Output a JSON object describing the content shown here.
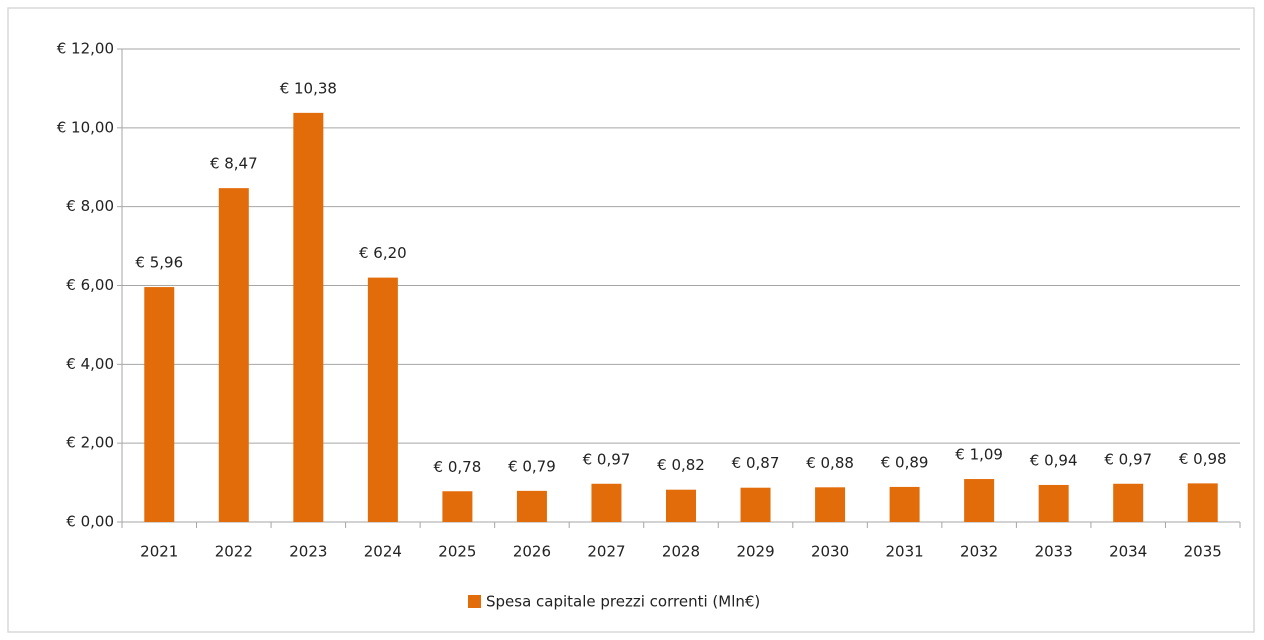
{
  "chart_data": {
    "type": "bar",
    "categories": [
      "2021",
      "2022",
      "2023",
      "2024",
      "2025",
      "2026",
      "2027",
      "2028",
      "2029",
      "2030",
      "2031",
      "2032",
      "2033",
      "2034",
      "2035"
    ],
    "values": [
      5.96,
      8.47,
      10.38,
      6.2,
      0.78,
      0.79,
      0.97,
      0.82,
      0.87,
      0.88,
      0.89,
      1.09,
      0.94,
      0.97,
      0.98
    ],
    "value_labels": [
      "€ 5,96",
      "€ 8,47",
      "€ 10,38",
      "€ 6,20",
      "€ 0,78",
      "€ 0,79",
      "€ 0,97",
      "€ 0,82",
      "€ 0,87",
      "€ 0,88",
      "€ 0,89",
      "€ 1,09",
      "€ 0,94",
      "€ 0,97",
      "€ 0,98"
    ],
    "series_name": "Spesa capitale prezzi correnti (Mln€)",
    "color": "#e36c0a",
    "ylim": [
      0,
      12
    ],
    "yticks": [
      {
        "value": 0,
        "label": "€ 0,00"
      },
      {
        "value": 2,
        "label": "€ 2,00"
      },
      {
        "value": 4,
        "label": "€ 4,00"
      },
      {
        "value": 6,
        "label": "€ 6,00"
      },
      {
        "value": 8,
        "label": "€ 8,00"
      },
      {
        "value": 10,
        "label": "€ 10,00"
      },
      {
        "value": 12,
        "label": "€ 12,00"
      }
    ],
    "grid": true,
    "legend": "bottom"
  }
}
